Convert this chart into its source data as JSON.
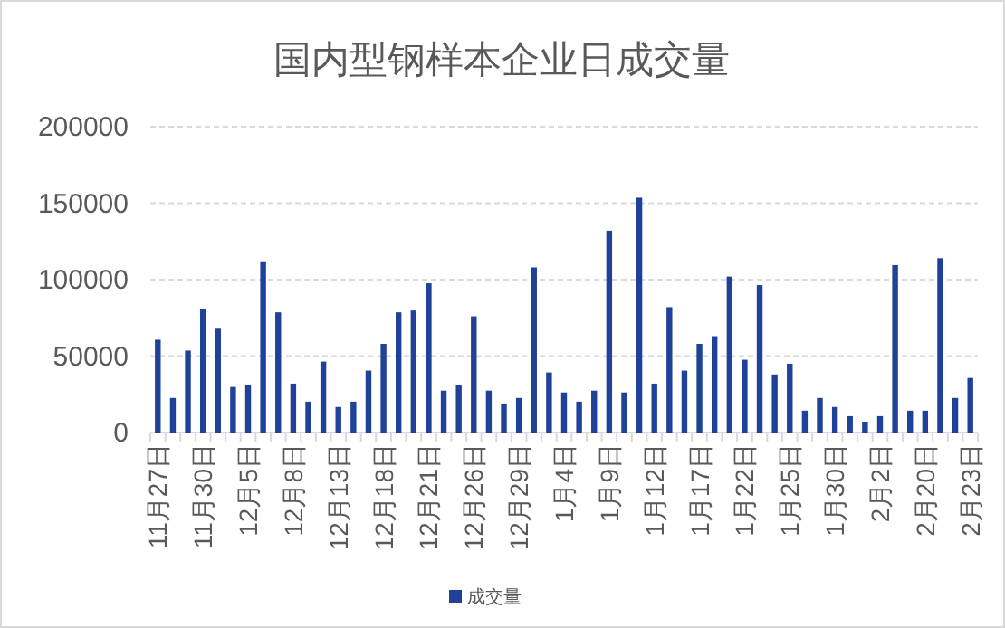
{
  "chart_data": {
    "type": "bar",
    "title": "国内型钢样本企业日成交量",
    "categories": [
      "11月27日",
      null,
      null,
      "11月30日",
      null,
      null,
      "12月5日",
      null,
      null,
      "12月8日",
      null,
      null,
      "12月13日",
      null,
      null,
      "12月18日",
      null,
      null,
      "12月21日",
      null,
      null,
      "12月26日",
      null,
      null,
      "12月29日",
      null,
      null,
      "1月4日",
      null,
      null,
      "1月9日",
      null,
      null,
      "1月12日",
      null,
      null,
      "1月17日",
      null,
      null,
      "1月22日",
      null,
      null,
      "1月25日",
      null,
      null,
      "1月30日",
      null,
      null,
      "2月2日",
      null,
      null,
      "2月20日",
      null,
      null,
      "2月23日"
    ],
    "series": [
      {
        "name": "成交量",
        "color": "#1f4199",
        "values": [
          60700,
          22600,
          53600,
          81000,
          67900,
          29800,
          31000,
          112000,
          78600,
          32000,
          20200,
          46400,
          16700,
          20200,
          40500,
          58000,
          78600,
          79800,
          97600,
          27400,
          31000,
          76000,
          27400,
          19000,
          22600,
          108000,
          39300,
          26200,
          20200,
          27400,
          132000,
          26200,
          153600,
          32000,
          82000,
          40500,
          58000,
          63000,
          102000,
          47600,
          96400,
          38000,
          45000,
          14300,
          22600,
          16700,
          10700,
          7100,
          10700,
          109500,
          14300,
          14300,
          114000,
          22600,
          35700
        ]
      }
    ],
    "ylim": [
      0,
      200000
    ],
    "yticks": [
      0,
      50000,
      100000,
      150000,
      200000
    ],
    "grid": "y",
    "legend": "bottom"
  }
}
